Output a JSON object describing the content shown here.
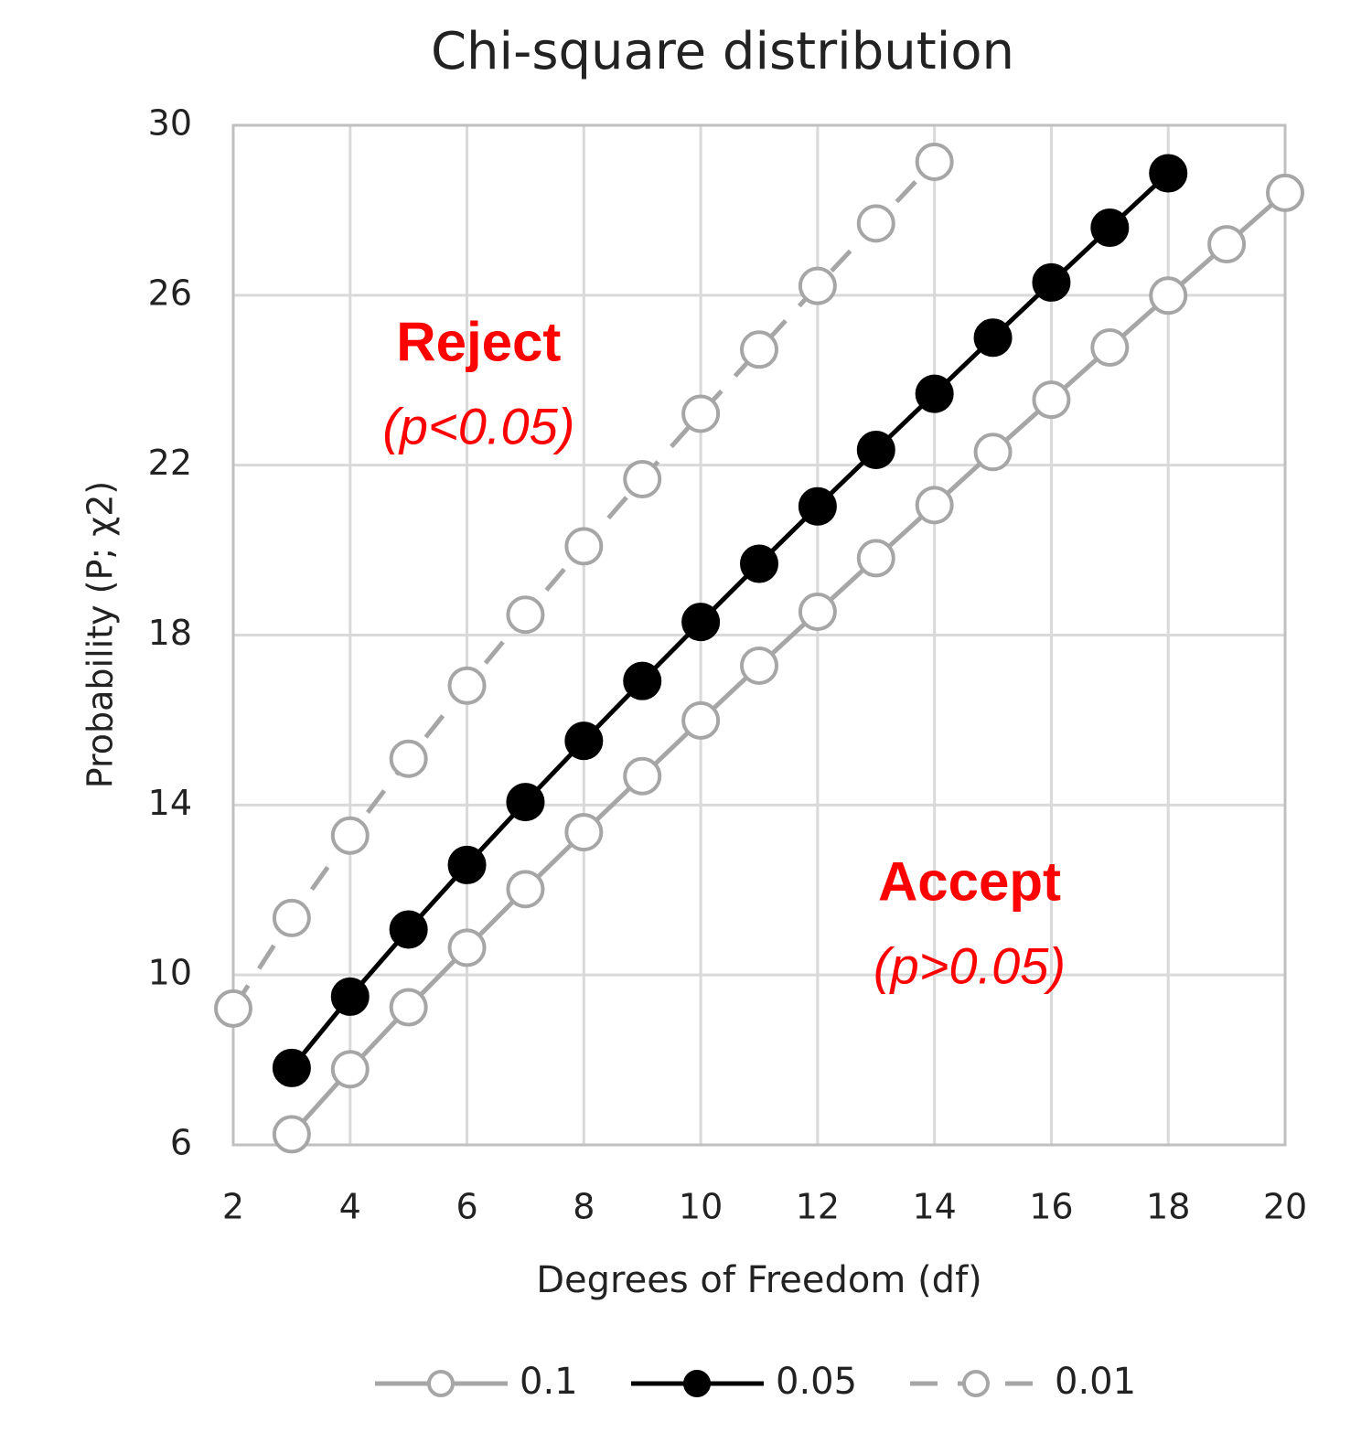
{
  "chart_data": {
    "type": "line",
    "title": "Chi-square distribution",
    "x_label": "Degrees of Freedom (df)",
    "y_label": "Probability (P; χ2)",
    "xlim": [
      2,
      20
    ],
    "xticks": [
      2,
      4,
      6,
      8,
      10,
      12,
      14,
      16,
      18,
      20
    ],
    "ylim": [
      6,
      30
    ],
    "yticks": [
      6,
      10,
      14,
      18,
      22,
      26,
      30
    ],
    "grid": true,
    "legend": "bottom",
    "annotations": [
      {
        "text": "Reject",
        "subtext": "(p<0.05)",
        "x": 6.2,
        "y": 24.8
      },
      {
        "text": "Accept",
        "subtext": "(p>0.05)",
        "x": 14.6,
        "y": 12.1
      }
    ],
    "series": [
      {
        "name": "0.1",
        "color": "#a6a6a6",
        "marker_fill": "#ffffff",
        "dashed": false,
        "x": [
          3,
          4,
          5,
          6,
          7,
          8,
          9,
          10,
          11,
          12,
          13,
          14,
          15,
          16,
          17,
          18,
          19,
          20
        ],
        "values": [
          6.25,
          7.78,
          9.24,
          10.64,
          12.02,
          13.36,
          14.68,
          15.99,
          17.28,
          18.55,
          19.81,
          21.06,
          22.31,
          23.54,
          24.77,
          25.99,
          27.2,
          28.41
        ]
      },
      {
        "name": "0.05",
        "color": "#000000",
        "marker_fill": "#000000",
        "dashed": false,
        "x": [
          3,
          4,
          5,
          6,
          7,
          8,
          9,
          10,
          11,
          12,
          13,
          14,
          15,
          16,
          17,
          18
        ],
        "values": [
          7.81,
          9.49,
          11.07,
          12.59,
          14.07,
          15.51,
          16.92,
          18.31,
          19.68,
          21.03,
          22.36,
          23.68,
          25.0,
          26.3,
          27.59,
          28.87
        ]
      },
      {
        "name": "0.01",
        "color": "#a6a6a6",
        "marker_fill": "#ffffff",
        "dashed": true,
        "x": [
          2,
          3,
          4,
          5,
          6,
          7,
          8,
          9,
          10,
          11,
          12,
          13,
          14
        ],
        "values": [
          9.21,
          11.34,
          13.28,
          15.09,
          16.81,
          18.48,
          20.09,
          21.67,
          23.21,
          24.72,
          26.22,
          27.69,
          29.14
        ]
      }
    ]
  }
}
